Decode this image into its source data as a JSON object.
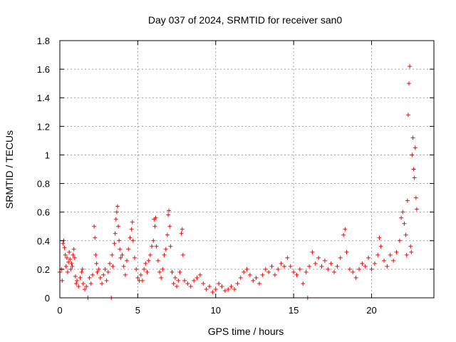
{
  "chart_data": {
    "type": "scatter",
    "title": "Day 037 of 2024, SRMTID for receiver san0",
    "xlabel": "GPS time / hours",
    "ylabel": "SRMTID / TECUs",
    "xlim": [
      0,
      24
    ],
    "ylim": [
      0,
      1.8
    ],
    "xticks": [
      0,
      5,
      10,
      15,
      20
    ],
    "xtick_labels": [
      "0",
      "5",
      "10",
      "15",
      "20"
    ],
    "yticks": [
      0,
      0.2,
      0.4,
      0.6,
      0.8,
      1.0,
      1.2,
      1.4,
      1.6,
      1.8
    ],
    "ytick_labels": [
      "0",
      "0.2",
      "0.4",
      "0.6",
      "0.8",
      "1",
      "1.2",
      "1.4",
      "1.6",
      "1.8"
    ],
    "grid": true,
    "marker": "+",
    "series": [
      {
        "name": "san0",
        "color": "#ff0000",
        "points": [
          [
            0.0,
            0.18
          ],
          [
            0.1,
            0.2
          ],
          [
            0.15,
            0.12
          ],
          [
            0.2,
            0.38
          ],
          [
            0.25,
            0.4
          ],
          [
            0.3,
            0.35
          ],
          [
            0.35,
            0.3
          ],
          [
            0.4,
            0.22
          ],
          [
            0.45,
            0.28
          ],
          [
            0.5,
            0.18
          ],
          [
            0.55,
            0.25
          ],
          [
            0.6,
            0.32
          ],
          [
            0.65,
            0.27
          ],
          [
            0.7,
            0.2
          ],
          [
            0.75,
            0.24
          ],
          [
            0.8,
            0.22
          ],
          [
            0.85,
            0.3
          ],
          [
            0.9,
            0.34
          ],
          [
            0.95,
            0.28
          ],
          [
            1.0,
            0.15
          ],
          [
            1.05,
            0.1
          ],
          [
            1.1,
            0.12
          ],
          [
            1.2,
            0.08
          ],
          [
            1.3,
            0.14
          ],
          [
            1.4,
            0.18
          ],
          [
            1.45,
            0.2
          ],
          [
            1.5,
            0.1
          ],
          [
            1.6,
            0.06
          ],
          [
            1.7,
            0.08
          ],
          [
            1.8,
            0.0
          ],
          [
            1.9,
            0.14
          ],
          [
            2.0,
            0.1
          ],
          [
            2.1,
            0.16
          ],
          [
            2.2,
            0.5
          ],
          [
            2.25,
            0.42
          ],
          [
            2.3,
            0.3
          ],
          [
            2.35,
            0.24
          ],
          [
            2.4,
            0.18
          ],
          [
            2.5,
            0.2
          ],
          [
            2.6,
            0.14
          ],
          [
            2.7,
            0.1
          ],
          [
            2.8,
            0.16
          ],
          [
            2.9,
            0.2
          ],
          [
            3.0,
            0.12
          ],
          [
            3.1,
            0.18
          ],
          [
            3.2,
            0.24
          ],
          [
            3.3,
            0.0
          ],
          [
            3.35,
            0.3
          ],
          [
            3.4,
            0.22
          ],
          [
            3.5,
            0.38
          ],
          [
            3.55,
            0.45
          ],
          [
            3.6,
            0.55
          ],
          [
            3.65,
            0.6
          ],
          [
            3.7,
            0.64
          ],
          [
            3.75,
            0.5
          ],
          [
            3.8,
            0.4
          ],
          [
            3.85,
            0.34
          ],
          [
            3.9,
            0.28
          ],
          [
            4.0,
            0.3
          ],
          [
            4.1,
            0.22
          ],
          [
            4.2,
            0.16
          ],
          [
            4.3,
            0.26
          ],
          [
            4.4,
            0.34
          ],
          [
            4.5,
            0.42
          ],
          [
            4.6,
            0.48
          ],
          [
            4.65,
            0.53
          ],
          [
            4.7,
            0.4
          ],
          [
            4.8,
            0.28
          ],
          [
            4.9,
            0.2
          ],
          [
            5.0,
            0.14
          ],
          [
            5.1,
            0.12
          ],
          [
            5.2,
            0.16
          ],
          [
            5.3,
            0.12
          ],
          [
            5.4,
            0.2
          ],
          [
            5.5,
            0.24
          ],
          [
            5.6,
            0.18
          ],
          [
            5.7,
            0.26
          ],
          [
            5.8,
            0.3
          ],
          [
            5.9,
            0.36
          ],
          [
            6.0,
            0.4
          ],
          [
            6.05,
            0.55
          ],
          [
            6.1,
            0.5
          ],
          [
            6.15,
            0.56
          ],
          [
            6.2,
            0.36
          ],
          [
            6.3,
            0.26
          ],
          [
            6.4,
            0.18
          ],
          [
            6.5,
            0.14
          ],
          [
            6.6,
            0.2
          ],
          [
            6.7,
            0.3
          ],
          [
            6.8,
            0.34
          ],
          [
            6.9,
            0.44
          ],
          [
            6.95,
            0.58
          ],
          [
            7.0,
            0.61
          ],
          [
            7.05,
            0.5
          ],
          [
            7.1,
            0.36
          ],
          [
            7.2,
            0.18
          ],
          [
            7.3,
            0.1
          ],
          [
            7.4,
            0.14
          ],
          [
            7.5,
            0.08
          ],
          [
            7.6,
            0.12
          ],
          [
            7.7,
            0.18
          ],
          [
            7.8,
            0.45
          ],
          [
            7.85,
            0.48
          ],
          [
            7.9,
            0.3
          ],
          [
            8.0,
            0.12
          ],
          [
            8.2,
            0.1
          ],
          [
            8.4,
            0.08
          ],
          [
            8.6,
            0.12
          ],
          [
            8.8,
            0.14
          ],
          [
            9.0,
            0.16
          ],
          [
            9.2,
            0.1
          ],
          [
            9.4,
            0.06
          ],
          [
            9.6,
            0.08
          ],
          [
            9.8,
            0.04
          ],
          [
            10.0,
            0.06
          ],
          [
            10.2,
            0.1
          ],
          [
            10.4,
            0.08
          ],
          [
            10.6,
            0.05
          ],
          [
            10.8,
            0.06
          ],
          [
            11.0,
            0.08
          ],
          [
            11.2,
            0.06
          ],
          [
            11.4,
            0.1
          ],
          [
            11.6,
            0.14
          ],
          [
            11.8,
            0.18
          ],
          [
            12.0,
            0.2
          ],
          [
            12.2,
            0.16
          ],
          [
            12.4,
            0.12
          ],
          [
            12.6,
            0.14
          ],
          [
            12.8,
            0.1
          ],
          [
            13.0,
            0.16
          ],
          [
            13.2,
            0.2
          ],
          [
            13.4,
            0.18
          ],
          [
            13.6,
            0.22
          ],
          [
            13.8,
            0.16
          ],
          [
            14.0,
            0.2
          ],
          [
            14.2,
            0.24
          ],
          [
            14.4,
            0.22
          ],
          [
            14.6,
            0.28
          ],
          [
            14.8,
            0.22
          ],
          [
            15.0,
            0.18
          ],
          [
            15.2,
            0.16
          ],
          [
            15.4,
            0.2
          ],
          [
            15.6,
            0.1
          ],
          [
            15.8,
            0.18
          ],
          [
            15.9,
            0.0
          ],
          [
            16.0,
            0.22
          ],
          [
            16.2,
            0.32
          ],
          [
            16.4,
            0.24
          ],
          [
            16.6,
            0.28
          ],
          [
            16.8,
            0.22
          ],
          [
            17.0,
            0.26
          ],
          [
            17.2,
            0.2
          ],
          [
            17.4,
            0.24
          ],
          [
            17.6,
            0.18
          ],
          [
            17.8,
            0.22
          ],
          [
            18.0,
            0.28
          ],
          [
            18.2,
            0.44
          ],
          [
            18.3,
            0.48
          ],
          [
            18.4,
            0.32
          ],
          [
            18.6,
            0.2
          ],
          [
            18.8,
            0.18
          ],
          [
            19.0,
            0.14
          ],
          [
            19.2,
            0.2
          ],
          [
            19.4,
            0.24
          ],
          [
            19.6,
            0.22
          ],
          [
            19.8,
            0.28
          ],
          [
            20.0,
            0.2
          ],
          [
            20.2,
            0.24
          ],
          [
            20.4,
            0.3
          ],
          [
            20.5,
            0.42
          ],
          [
            20.6,
            0.36
          ],
          [
            20.8,
            0.26
          ],
          [
            21.0,
            0.22
          ],
          [
            21.2,
            0.3
          ],
          [
            21.4,
            0.26
          ],
          [
            21.6,
            0.32
          ],
          [
            21.8,
            0.4
          ],
          [
            21.9,
            0.56
          ],
          [
            22.0,
            0.6
          ],
          [
            22.1,
            0.52
          ],
          [
            22.2,
            0.44
          ],
          [
            22.25,
            0.3
          ],
          [
            22.3,
            0.68
          ],
          [
            22.35,
            1.28
          ],
          [
            22.4,
            1.5
          ],
          [
            22.45,
            1.62
          ],
          [
            22.5,
            0.36
          ],
          [
            22.55,
            0.32
          ],
          [
            22.6,
            1.0
          ],
          [
            22.65,
            1.12
          ],
          [
            22.7,
            0.9
          ],
          [
            22.75,
            0.84
          ],
          [
            22.8,
            1.05
          ],
          [
            22.85,
            0.7
          ],
          [
            22.9,
            0.62
          ]
        ]
      }
    ]
  }
}
